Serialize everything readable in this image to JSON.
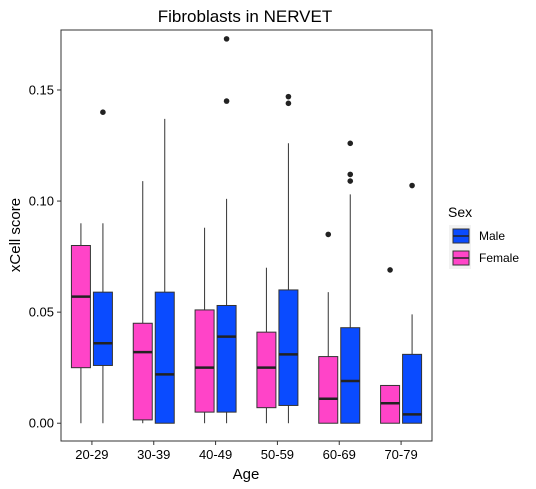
{
  "chart_data": {
    "type": "box",
    "title": "Fibroblasts in NERVET",
    "xlabel": "Age",
    "ylabel": "xCell score",
    "categories": [
      "20-29",
      "30-39",
      "40-49",
      "50-59",
      "60-69",
      "70-79"
    ],
    "ylim": [
      -0.008,
      0.177
    ],
    "yticks": [
      0.0,
      0.05,
      0.1,
      0.15
    ],
    "ytick_labels": [
      "0.00",
      "0.05",
      "0.10",
      "0.15"
    ],
    "grid": false,
    "legend": {
      "title": "Sex",
      "position": "right",
      "entries": [
        "Male",
        "Female"
      ]
    },
    "series": [
      {
        "name": "Female",
        "color": "#FF44C8",
        "boxes": [
          {
            "min": 0.0,
            "q1": 0.025,
            "median": 0.057,
            "q3": 0.08,
            "max": 0.09,
            "outliers": []
          },
          {
            "min": 0.0,
            "q1": 0.0015,
            "median": 0.032,
            "q3": 0.045,
            "max": 0.109,
            "outliers": []
          },
          {
            "min": 0.0,
            "q1": 0.005,
            "median": 0.025,
            "q3": 0.051,
            "max": 0.088,
            "outliers": []
          },
          {
            "min": 0.0,
            "q1": 0.007,
            "median": 0.025,
            "q3": 0.041,
            "max": 0.07,
            "outliers": []
          },
          {
            "min": 0.0,
            "q1": 0.0,
            "median": 0.011,
            "q3": 0.03,
            "max": 0.059,
            "outliers": [
              0.085
            ]
          },
          {
            "min": 0.0,
            "q1": 0.0,
            "median": 0.009,
            "q3": 0.017,
            "max": 0.017,
            "outliers": [
              0.069
            ]
          }
        ]
      },
      {
        "name": "Male",
        "color": "#0A4BFF",
        "boxes": [
          {
            "min": 0.0,
            "q1": 0.026,
            "median": 0.036,
            "q3": 0.059,
            "max": 0.09,
            "outliers": [
              0.14
            ]
          },
          {
            "min": 0.0,
            "q1": 0.0,
            "median": 0.022,
            "q3": 0.059,
            "max": 0.137,
            "outliers": []
          },
          {
            "min": 0.0,
            "q1": 0.005,
            "median": 0.039,
            "q3": 0.053,
            "max": 0.101,
            "outliers": [
              0.145,
              0.173
            ]
          },
          {
            "min": 0.0,
            "q1": 0.008,
            "median": 0.031,
            "q3": 0.06,
            "max": 0.126,
            "outliers": [
              0.144,
              0.147
            ]
          },
          {
            "min": 0.0,
            "q1": 0.0,
            "median": 0.019,
            "q3": 0.043,
            "max": 0.103,
            "outliers": [
              0.109,
              0.112,
              0.126
            ]
          },
          {
            "min": 0.0,
            "q1": 0.0,
            "median": 0.004,
            "q3": 0.031,
            "max": 0.049,
            "outliers": [
              0.107
            ]
          }
        ]
      }
    ]
  }
}
